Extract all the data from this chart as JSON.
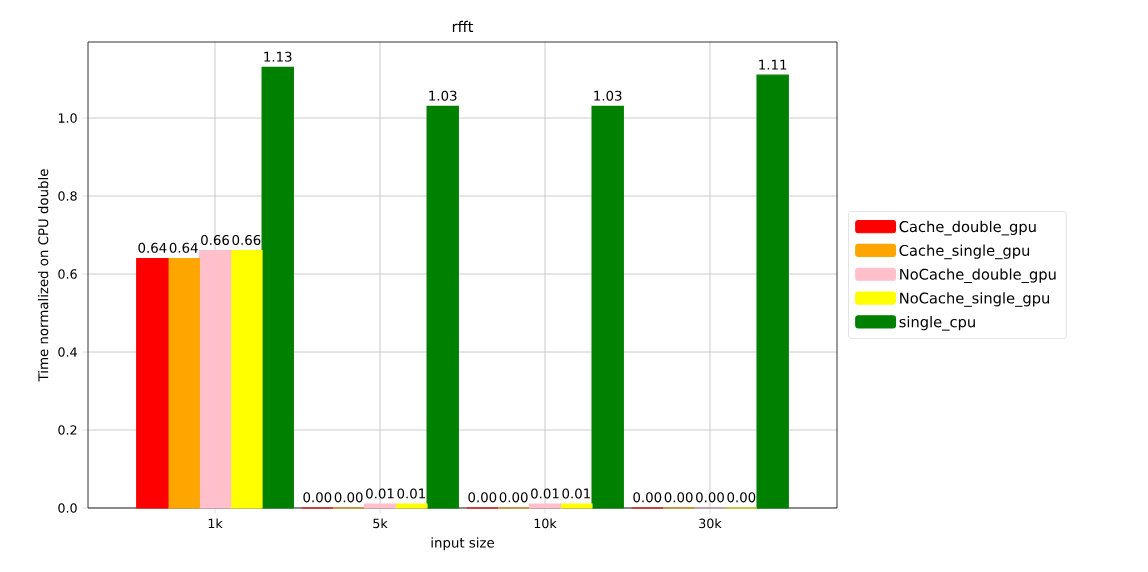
{
  "chart_data": {
    "type": "bar",
    "title": "rfft",
    "xlabel": "input size",
    "ylabel": "Time normalized on CPU double",
    "categories": [
      "1k",
      "5k",
      "10k",
      "30k"
    ],
    "series": [
      {
        "name": "Cache_double_gpu",
        "color": "#ff0000",
        "values": [
          0.64,
          0.0,
          0.0,
          0.0
        ],
        "value_labels": [
          "0.64",
          "0.00",
          "0.00",
          "0.00"
        ]
      },
      {
        "name": "Cache_single_gpu",
        "color": "#ffa500",
        "values": [
          0.64,
          0.0,
          0.0,
          0.0
        ],
        "value_labels": [
          "0.64",
          "0.00",
          "0.00",
          "0.00"
        ]
      },
      {
        "name": "NoCache_double_gpu",
        "color": "#ffc0cb",
        "values": [
          0.66,
          0.01,
          0.01,
          0.0
        ],
        "value_labels": [
          "0.66",
          "0.01",
          "0.01",
          "0.00"
        ]
      },
      {
        "name": "NoCache_single_gpu",
        "color": "#ffff00",
        "values": [
          0.66,
          0.01,
          0.01,
          0.0
        ],
        "value_labels": [
          "0.66",
          "0.01",
          "0.01",
          "0.00"
        ]
      },
      {
        "name": "single_cpu",
        "color": "#008000",
        "values": [
          1.13,
          1.03,
          1.03,
          1.11
        ],
        "value_labels": [
          "1.13",
          "1.03",
          "1.03",
          "1.11"
        ]
      }
    ],
    "ylim": [
      0,
      1.195
    ],
    "yticks": [
      {
        "value": 0,
        "label": "0.0"
      },
      {
        "value": 0.2,
        "label": "0.2"
      },
      {
        "value": 0.4,
        "label": "0.4"
      },
      {
        "value": 0.6,
        "label": "0.6"
      },
      {
        "value": 0.8,
        "label": "0.8"
      },
      {
        "value": 1.0,
        "label": "1.0"
      }
    ],
    "grid": true,
    "legend": "right"
  }
}
